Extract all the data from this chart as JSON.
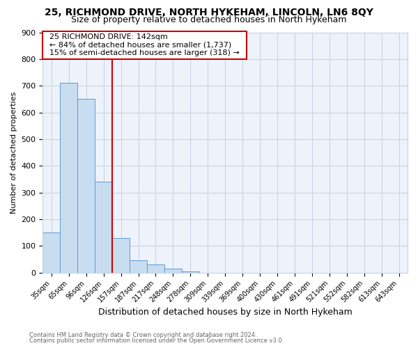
{
  "title1": "25, RICHMOND DRIVE, NORTH HYKEHAM, LINCOLN, LN6 8QY",
  "title2": "Size of property relative to detached houses in North Hykeham",
  "xlabel": "Distribution of detached houses by size in North Hykeham",
  "ylabel": "Number of detached properties",
  "footer1": "Contains HM Land Registry data © Crown copyright and database right 2024.",
  "footer2": "Contains public sector information licensed under the Open Government Licence v3.0.",
  "annotation_line1": "25 RICHMOND DRIVE: 142sqm",
  "annotation_line2": "← 84% of detached houses are smaller (1,737)",
  "annotation_line3": "15% of semi-detached houses are larger (318) →",
  "bar_labels": [
    "35sqm",
    "65sqm",
    "96sqm",
    "126sqm",
    "157sqm",
    "187sqm",
    "217sqm",
    "248sqm",
    "278sqm",
    "309sqm",
    "339sqm",
    "369sqm",
    "400sqm",
    "430sqm",
    "461sqm",
    "491sqm",
    "521sqm",
    "552sqm",
    "582sqm",
    "613sqm",
    "643sqm"
  ],
  "bar_values": [
    150,
    710,
    650,
    340,
    130,
    45,
    30,
    15,
    5,
    0,
    0,
    0,
    0,
    0,
    0,
    0,
    0,
    0,
    0,
    0,
    0
  ],
  "bar_color": "#c9ddf0",
  "bar_edge_color": "#5b9bd5",
  "vline_x": 3.5,
  "vline_color": "#cc0000",
  "bg_color": "#ffffff",
  "plot_bg_color": "#edf2fb",
  "grid_color": "#c8d0e0",
  "annotation_box_color": "#cc0000",
  "ylim": [
    0,
    900
  ],
  "yticks": [
    0,
    100,
    200,
    300,
    400,
    500,
    600,
    700,
    800,
    900
  ],
  "title1_fontsize": 10,
  "title2_fontsize": 9
}
